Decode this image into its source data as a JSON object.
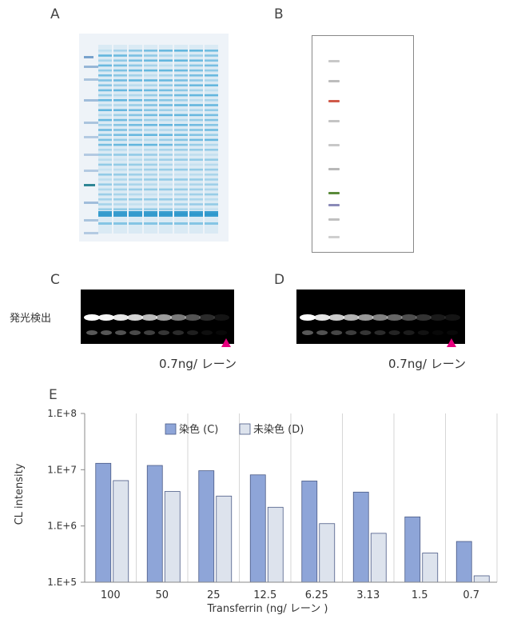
{
  "panels": {
    "a": "A",
    "b": "B",
    "c": "C",
    "d": "D",
    "e": "E"
  },
  "side_label": "発光検出",
  "amount_c": "0.7ng/ レーン",
  "amount_d": "0.7ng/ レーン",
  "colors": {
    "stained": "#8ea5d8",
    "unstained": "#dde3ed",
    "marker": "#e6007e",
    "gel_blue": "#2f9fd4"
  },
  "chart_data": {
    "type": "bar",
    "y_scale": "log",
    "ylim": [
      100000,
      100000000
    ],
    "ytick_labels": [
      "1.E+8",
      "1.E+7",
      "1.E+6",
      "1.E+5"
    ],
    "ylabel": "CL intensity",
    "xlabel": "Transferrin (ng/ レーン )",
    "categories": [
      "100",
      "50",
      "25",
      "12.5",
      "6.25",
      "3.13",
      "1.5",
      "0.7"
    ],
    "series": [
      {
        "name": "染色 (C)",
        "color": "#8ea5d8",
        "values": [
          13000000,
          11900000,
          9600000,
          8100000,
          6300000,
          4000000,
          1450000,
          530000
        ]
      },
      {
        "name": "未染色 (D)",
        "color": "#dde3ed",
        "values": [
          6400000,
          4100000,
          3400000,
          2150000,
          1100000,
          740000,
          330000,
          130000
        ]
      }
    ],
    "grid": "vertical",
    "legend": "top-left"
  }
}
